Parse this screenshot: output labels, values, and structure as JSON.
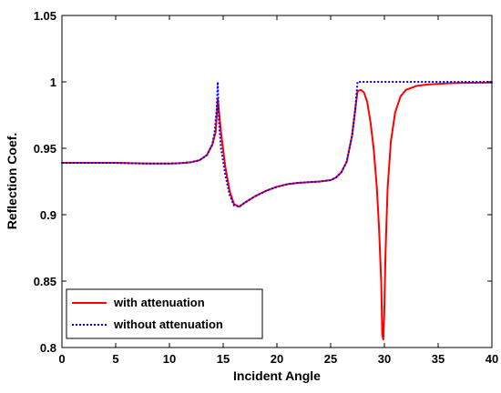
{
  "chart_data": {
    "type": "line",
    "title": "",
    "xlabel": "Incident Angle",
    "ylabel": "Reflection Coef.",
    "xlim": [
      0,
      40
    ],
    "ylim": [
      0.8,
      1.05
    ],
    "x_ticks": [
      "0",
      "5",
      "10",
      "15",
      "20",
      "25",
      "30",
      "35",
      "40"
    ],
    "y_ticks": [
      "0.8",
      "0.85",
      "0.9",
      "0.95",
      "1",
      "1.05"
    ],
    "grid": false,
    "legend_position": "bottom-left",
    "series": [
      {
        "name": "with attenuation",
        "color": "#ff0000",
        "style": "solid",
        "x": [
          0,
          5,
          8,
          10,
          11,
          12,
          12.8,
          13.5,
          14,
          14.3,
          14.5,
          14.8,
          15.2,
          15.6,
          16,
          16.5,
          17,
          18,
          19,
          20,
          21,
          22,
          23,
          24,
          25,
          25.5,
          26,
          26.5,
          27,
          27.3,
          27.5,
          27.8,
          28.1,
          28.4,
          28.7,
          29,
          29.3,
          29.5,
          29.7,
          29.8,
          29.9,
          30,
          30.1,
          30.3,
          30.6,
          31,
          31.5,
          32,
          33,
          34,
          35,
          36,
          38,
          40
        ],
        "y": [
          0.939,
          0.939,
          0.9385,
          0.9385,
          0.9388,
          0.9395,
          0.941,
          0.945,
          0.953,
          0.962,
          0.987,
          0.962,
          0.936,
          0.918,
          0.908,
          0.906,
          0.909,
          0.914,
          0.918,
          0.921,
          0.923,
          0.924,
          0.9245,
          0.925,
          0.926,
          0.928,
          0.932,
          0.94,
          0.96,
          0.98,
          0.993,
          0.994,
          0.992,
          0.985,
          0.97,
          0.95,
          0.92,
          0.89,
          0.85,
          0.81,
          0.806,
          0.83,
          0.87,
          0.92,
          0.955,
          0.977,
          0.989,
          0.994,
          0.997,
          0.998,
          0.9985,
          0.999,
          0.9993,
          0.9995
        ]
      },
      {
        "name": "without attenuation",
        "color": "#0000ff",
        "style": "dotted",
        "x": [
          0,
          5,
          8,
          10,
          11,
          12,
          12.8,
          13.5,
          14,
          14.2,
          14.4,
          14.5,
          14.6,
          14.8,
          15.2,
          15.6,
          16,
          16.5,
          17,
          18,
          19,
          20,
          21,
          22,
          23,
          24,
          25,
          25.5,
          26,
          26.5,
          27,
          27.3,
          27.5,
          28,
          30,
          32,
          35,
          40
        ],
        "y": [
          0.939,
          0.939,
          0.9385,
          0.9385,
          0.9388,
          0.9395,
          0.941,
          0.945,
          0.953,
          0.962,
          0.98,
          1.0,
          0.97,
          0.95,
          0.93,
          0.915,
          0.907,
          0.906,
          0.909,
          0.914,
          0.918,
          0.921,
          0.923,
          0.924,
          0.9245,
          0.925,
          0.926,
          0.928,
          0.932,
          0.94,
          0.96,
          0.98,
          1.0,
          1.0,
          1.0,
          1.0,
          1.0,
          1.0
        ]
      }
    ]
  }
}
